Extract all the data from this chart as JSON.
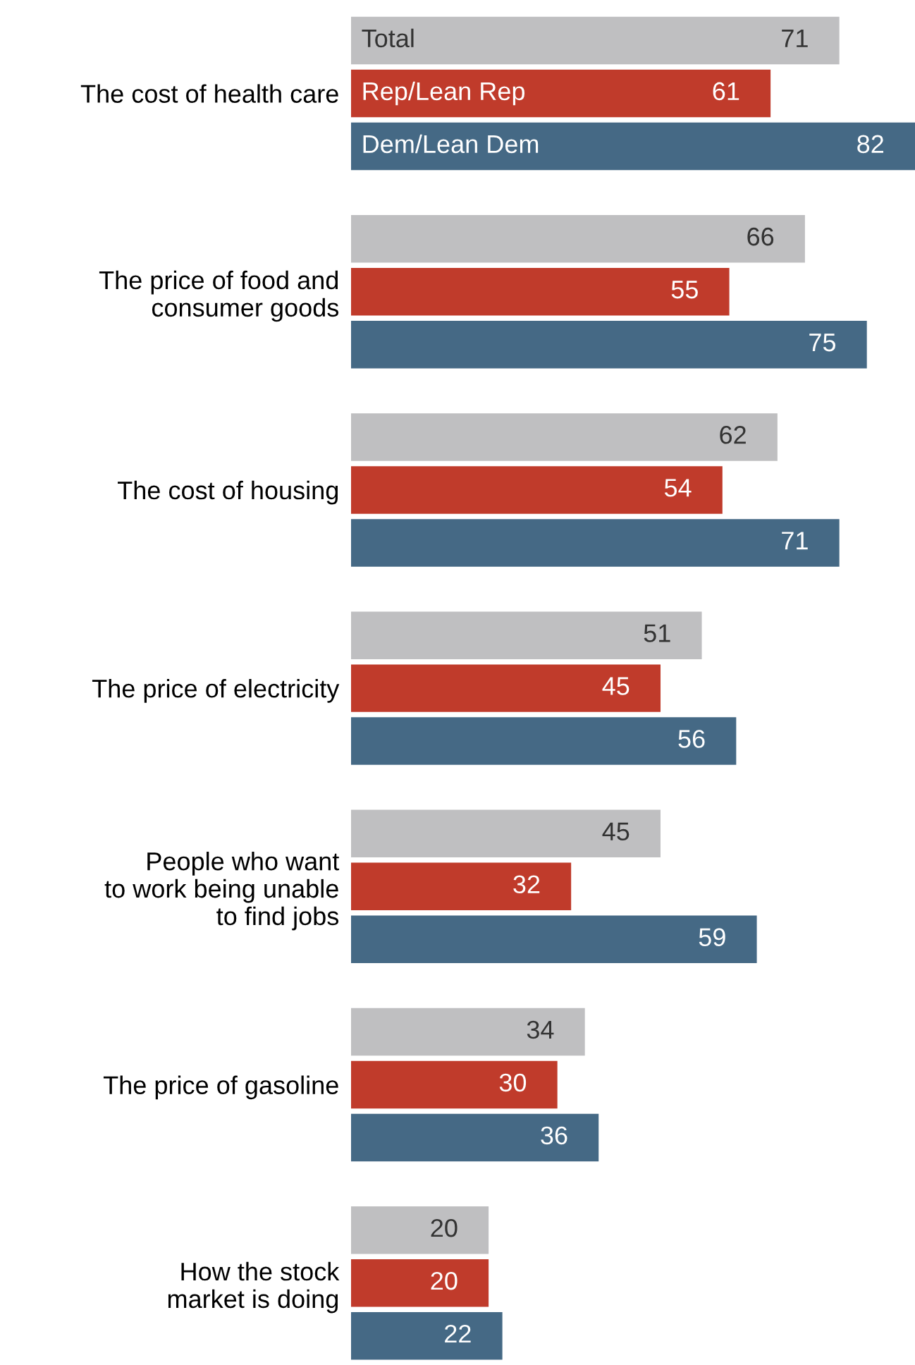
{
  "chart_data": {
    "type": "bar",
    "orientation": "horizontal",
    "categories": [
      "The cost of health care",
      "The price of food and\nconsumer goods",
      "The cost of housing",
      "The price of electricity",
      "People who want\nto work being unable\nto find jobs",
      "The price of gasoline",
      "How the stock\nmarket is doing"
    ],
    "series": [
      {
        "name": "Total",
        "color": "#bfbfc1",
        "values": [
          71,
          66,
          62,
          51,
          45,
          34,
          20
        ]
      },
      {
        "name": "Rep/Lean Rep",
        "color": "#c03b2b",
        "values": [
          61,
          55,
          54,
          45,
          32,
          30,
          20
        ]
      },
      {
        "name": "Dem/Lean Dem",
        "color": "#456985",
        "values": [
          82,
          75,
          71,
          56,
          59,
          36,
          22
        ]
      }
    ],
    "xlim": [
      0,
      82
    ],
    "data_labels": true,
    "tick_labels": "y",
    "grid": false,
    "legend": false
  }
}
